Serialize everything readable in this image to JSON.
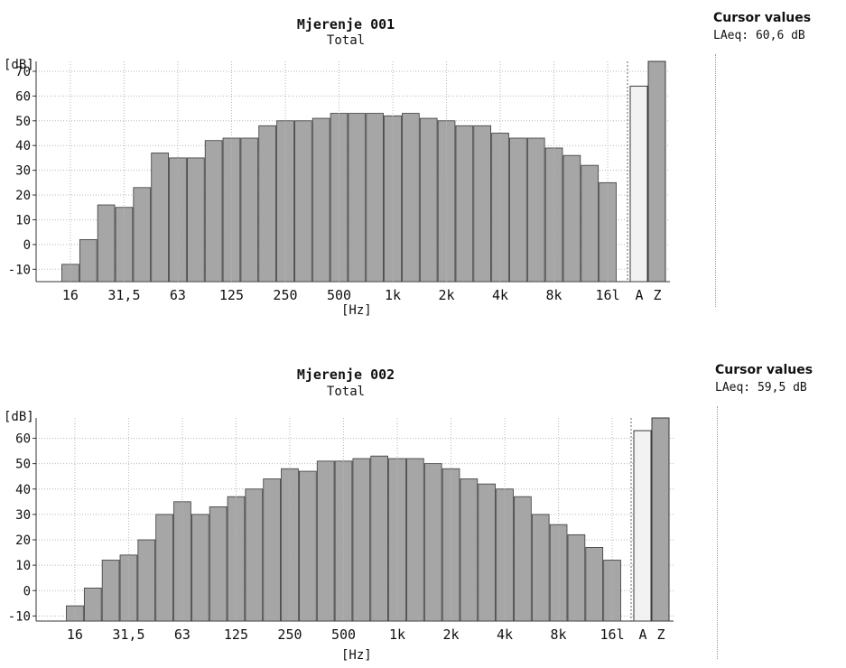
{
  "colors": {
    "bar": "#a6a6a6",
    "bar_stroke": "#3a3a3a",
    "weighted_bar": "#f2f2f2",
    "grid": "#b8b8b8"
  },
  "panels": [
    {
      "title": "Mjerenje 001",
      "subtitle": "Total",
      "cursor_label": "Cursor values",
      "cursor_value": "LAeq: 60,6 dB",
      "y_unit": "[dB]",
      "x_unit": "[Hz]"
    },
    {
      "title": "Mjerenje 002",
      "subtitle": "Total",
      "cursor_label": "Cursor values",
      "cursor_value": "LAeq: 59,5 dB",
      "y_unit": "[dB]",
      "x_unit": "[Hz]"
    }
  ],
  "chart_data": [
    {
      "type": "bar",
      "title": "Mjerenje 001",
      "subtitle": "Total",
      "ylabel": "[dB]",
      "xlabel": "[Hz]",
      "ylim": [
        -15,
        74
      ],
      "yticks": [
        -10,
        0,
        10,
        20,
        30,
        40,
        50,
        60,
        70
      ],
      "grid": true,
      "x_tick_labels": [
        "16",
        "31,5",
        "63",
        "125",
        "250",
        "500",
        "1k",
        "2k",
        "4k",
        "8k",
        "16l"
      ],
      "values": [
        -8,
        2,
        16,
        15,
        23,
        37,
        35,
        35,
        42,
        43,
        43,
        48,
        50,
        50,
        51,
        53,
        53,
        53,
        52,
        53,
        51,
        50,
        48,
        48,
        45,
        43,
        43,
        39,
        36,
        32,
        25
      ],
      "weighted": {
        "labels": [
          "A",
          "Z"
        ],
        "values": [
          64,
          74
        ]
      }
    },
    {
      "type": "bar",
      "title": "Mjerenje 002",
      "subtitle": "Total",
      "ylabel": "[dB]",
      "xlabel": "[Hz]",
      "ylim": [
        -12,
        68
      ],
      "yticks": [
        -10,
        0,
        10,
        20,
        30,
        40,
        50,
        60
      ],
      "grid": true,
      "x_tick_labels": [
        "16",
        "31,5",
        "63",
        "125",
        "250",
        "500",
        "1k",
        "2k",
        "4k",
        "8k",
        "16l"
      ],
      "values": [
        -6,
        1,
        12,
        14,
        20,
        30,
        35,
        30,
        33,
        37,
        40,
        44,
        48,
        47,
        51,
        51,
        52,
        53,
        52,
        52,
        50,
        48,
        44,
        42,
        40,
        37,
        30,
        26,
        22,
        17,
        12
      ],
      "weighted": {
        "labels": [
          "A",
          "Z"
        ],
        "values": [
          63,
          68
        ]
      }
    }
  ]
}
